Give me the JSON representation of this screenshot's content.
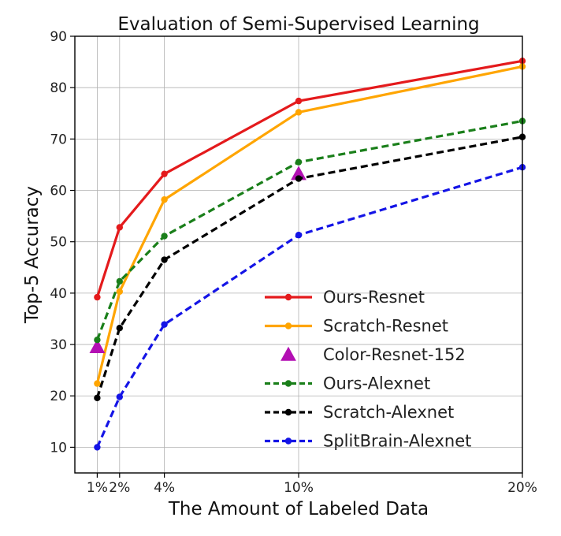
{
  "chart_data": {
    "type": "line",
    "title": "Evaluation of Semi-Supervised Learning",
    "xlabel": "The Amount of Labeled Data",
    "ylabel": "Top-5 Accuracy",
    "x": [
      1,
      2,
      4,
      10,
      20
    ],
    "x_tick_labels": [
      "1%",
      "2%",
      "4%",
      "10%",
      "20%"
    ],
    "xlim": [
      0,
      20
    ],
    "ylim": [
      5,
      90
    ],
    "y_ticks": [
      10,
      20,
      30,
      40,
      50,
      60,
      70,
      80,
      90
    ],
    "grid": true,
    "legend_position": "bottom-right",
    "series": [
      {
        "name": "Ours-Resnet",
        "color": "#e41a1c",
        "style": "solid",
        "marker": "circle",
        "values": [
          39.2,
          52.8,
          63.2,
          77.4,
          85.2
        ]
      },
      {
        "name": "Scratch-Resnet",
        "color": "#ffa500",
        "style": "solid",
        "marker": "circle",
        "values": [
          22.4,
          40.3,
          58.2,
          75.2,
          84.1
        ]
      },
      {
        "name": "Color-Resnet-152",
        "color": "#b30fb3",
        "style": "none",
        "marker": "triangle",
        "points": [
          {
            "x": 1,
            "y": 29.5
          },
          {
            "x": 10,
            "y": 63.2
          }
        ]
      },
      {
        "name": "Ours-Alexnet",
        "color": "#1a7f1a",
        "style": "dashed",
        "marker": "circle",
        "values": [
          30.9,
          42.3,
          51.1,
          65.5,
          73.5
        ]
      },
      {
        "name": "Scratch-Alexnet",
        "color": "#000000",
        "style": "dashed",
        "marker": "circle",
        "values": [
          19.6,
          33.2,
          46.5,
          62.3,
          70.4
        ]
      },
      {
        "name": "SplitBrain-Alexnet",
        "color": "#1414e6",
        "style": "dashed",
        "marker": "circle",
        "values": [
          10.0,
          19.8,
          33.9,
          51.3,
          64.5
        ]
      }
    ]
  }
}
